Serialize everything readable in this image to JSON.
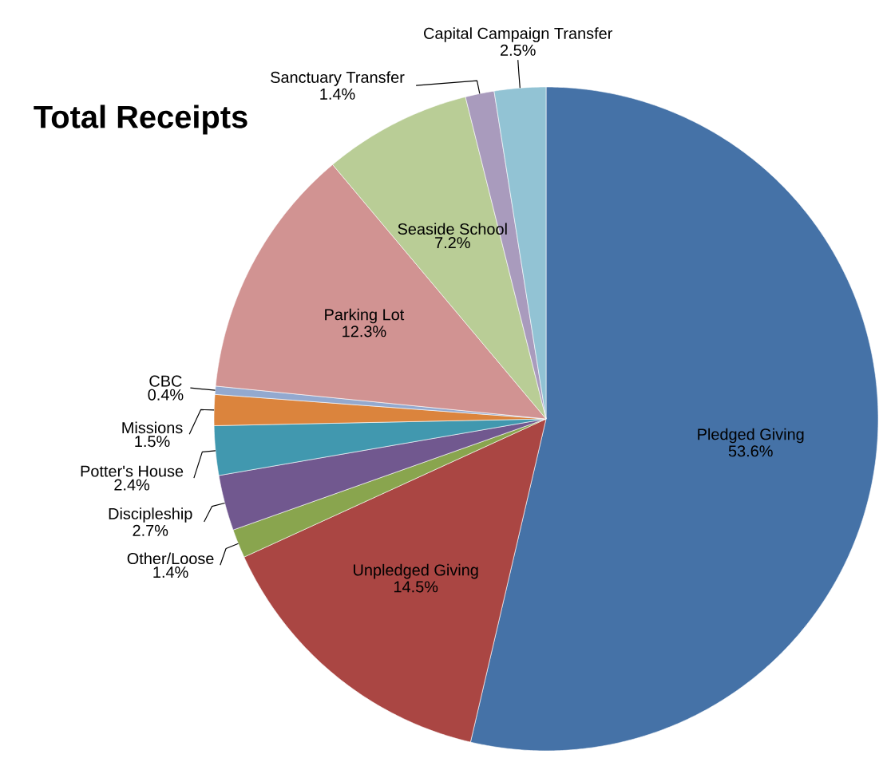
{
  "chart_data": {
    "type": "pie",
    "title": "Total Receipts",
    "categories": [
      "Pledged Giving",
      "Unpledged Giving",
      "Other/Loose",
      "Discipleship",
      "Potter's House",
      "Missions",
      "CBC",
      "Parking Lot",
      "Seaside School",
      "Sanctuary Transfer",
      "Capital Campaign Transfer"
    ],
    "values": [
      53.6,
      14.5,
      1.4,
      2.7,
      2.4,
      1.5,
      0.4,
      12.3,
      7.2,
      1.4,
      2.5
    ],
    "value_labels": [
      "53.6%",
      "14.5%",
      "1.4%",
      "2.7%",
      "2.4%",
      "1.5%",
      "0.4%",
      "12.3%",
      "7.2%",
      "1.4%",
      "2.5%"
    ],
    "colors": [
      "#4572a7",
      "#aa4643",
      "#89a54e",
      "#71588f",
      "#4198af",
      "#db843d",
      "#93a9cf",
      "#d19392",
      "#b9cd96",
      "#a99bbd",
      "#92c3d4"
    ]
  }
}
